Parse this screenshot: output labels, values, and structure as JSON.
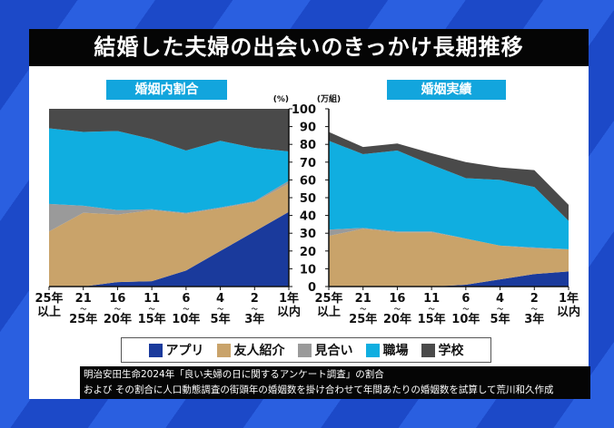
{
  "title": "結婚した夫婦の出会いのきっかけ長期推移",
  "legend": [
    {
      "label": "アプリ",
      "color": "#1a3a9c"
    },
    {
      "label": "友人紹介",
      "color": "#c9a36a"
    },
    {
      "label": "見合い",
      "color": "#9a9a9a"
    },
    {
      "label": "職場",
      "color": "#10aee0"
    },
    {
      "label": "学校",
      "color": "#4a4a4a"
    }
  ],
  "footer": {
    "line1": "明治安田生命2024年「良い夫婦の日に関するアンケート調査」の割合",
    "line2": "および その割合に人口動態調査の街頭年の婚姻数を掛け合わせて年間あたりの婚姻数を試算して荒川和久作成"
  },
  "chart_data": [
    {
      "type": "area",
      "stacked": true,
      "title": "婚姻内割合",
      "unit": "(%)",
      "ylim": [
        0,
        100
      ],
      "yticks": [
        0,
        10,
        20,
        30,
        40,
        50,
        60,
        70,
        80,
        90,
        100
      ],
      "categories": [
        [
          "25年",
          "以上"
        ],
        [
          "21",
          "〜",
          "25年"
        ],
        [
          "16",
          "〜",
          "20年"
        ],
        [
          "11",
          "〜",
          "15年"
        ],
        [
          "6",
          "〜",
          "10年"
        ],
        [
          "4",
          "〜",
          "5年"
        ],
        [
          "2",
          "〜",
          "3年"
        ],
        [
          "1年",
          "以内"
        ]
      ],
      "series": [
        {
          "name": "アプリ",
          "values": [
            0,
            0,
            2.5,
            3,
            9,
            20,
            31,
            42
          ]
        },
        {
          "name": "友人紹介",
          "values": [
            31,
            41.5,
            38,
            40,
            32,
            24,
            16.5,
            16
          ]
        },
        {
          "name": "見合い",
          "values": [
            15.5,
            4,
            2.5,
            0.5,
            0.5,
            0.5,
            0.5,
            1.5
          ]
        },
        {
          "name": "職場",
          "values": [
            42.5,
            41.5,
            44.5,
            39.5,
            35,
            37.5,
            30,
            16.5
          ]
        },
        {
          "name": "学校",
          "values": [
            11,
            13,
            12.5,
            17,
            23.5,
            18,
            22,
            24
          ]
        }
      ]
    },
    {
      "type": "area",
      "stacked": true,
      "title": "婚姻実績",
      "unit": "(万組)",
      "ylim": [
        0,
        100
      ],
      "yticks": [
        0,
        10,
        20,
        30,
        40,
        50,
        60,
        70,
        80,
        90,
        100
      ],
      "categories": [
        [
          "25年",
          "以上"
        ],
        [
          "21",
          "〜",
          "25年"
        ],
        [
          "16",
          "〜",
          "20年"
        ],
        [
          "11",
          "〜",
          "15年"
        ],
        [
          "6",
          "〜",
          "10年"
        ],
        [
          "4",
          "〜",
          "5年"
        ],
        [
          "2",
          "〜",
          "3年"
        ],
        [
          "1年",
          "以内"
        ]
      ],
      "series": [
        {
          "name": "アプリ",
          "values": [
            0,
            0,
            0,
            0,
            1,
            4,
            7,
            8.5
          ]
        },
        {
          "name": "友人紹介",
          "values": [
            28.5,
            32.5,
            30.5,
            30.5,
            26,
            19,
            14.5,
            12.5
          ]
        },
        {
          "name": "見合い",
          "values": [
            3.5,
            0.5,
            0.5,
            0.5,
            0,
            0,
            0.5,
            0
          ]
        },
        {
          "name": "職場",
          "values": [
            50,
            41.5,
            45.5,
            37.5,
            34,
            37,
            34,
            16
          ]
        },
        {
          "name": "学校",
          "values": [
            5,
            4,
            4,
            6.5,
            9,
            7,
            9.5,
            9
          ]
        }
      ]
    }
  ]
}
